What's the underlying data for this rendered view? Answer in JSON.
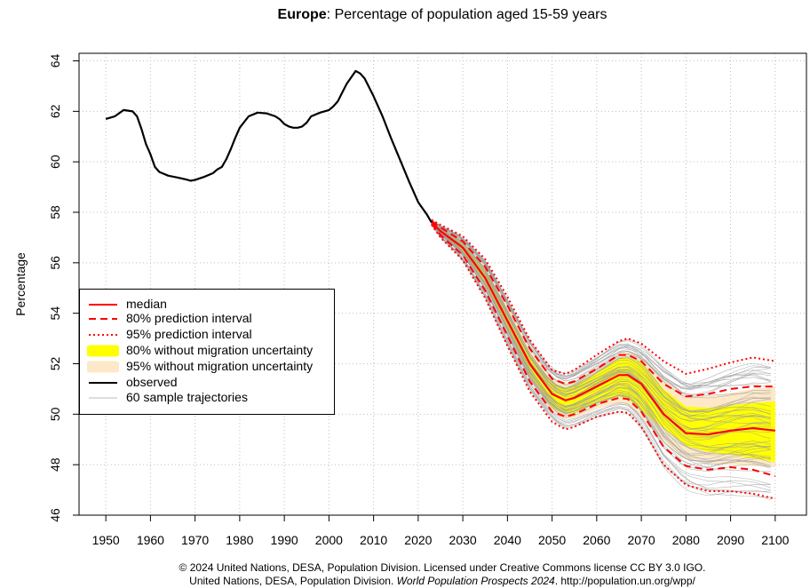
{
  "title": {
    "region": "Europe",
    "rest": ": Percentage of population aged 15-59 years"
  },
  "footer": {
    "line1": "© 2024 United Nations, DESA, Population Division. Licensed under Creative Commons license CC BY 3.0 IGO.",
    "line2_prefix": "United Nations, DESA, Population Division. ",
    "line2_italic": "World Population Prospects 2024",
    "line2_suffix": ". http://population.un.org/wpp/"
  },
  "legend": [
    {
      "key": "median",
      "label": "median"
    },
    {
      "key": "pi80",
      "label": "80% prediction interval"
    },
    {
      "key": "pi95",
      "label": "95% prediction interval"
    },
    {
      "key": "nomig80",
      "label": "80% without migration uncertainty"
    },
    {
      "key": "nomig95",
      "label": "95% without migration uncertainty"
    },
    {
      "key": "observed",
      "label": "observed"
    },
    {
      "key": "traj",
      "label": "60 sample trajectories"
    }
  ],
  "colors": {
    "median": "#ff0000",
    "band80": "#ffff00",
    "band95": "#fde8c8",
    "trajectory": "#9e9e9e",
    "observed": "#000000",
    "grid": "#bfbfbf"
  },
  "chart_data": {
    "type": "line",
    "title": "Europe: Percentage of population aged 15-59 years",
    "xlabel": "",
    "ylabel": "Percentage",
    "xlim": [
      1944,
      2107
    ],
    "ylim": [
      46,
      64.3
    ],
    "xticks": [
      1950,
      1960,
      1970,
      1980,
      1990,
      2000,
      2010,
      2020,
      2030,
      2040,
      2050,
      2060,
      2070,
      2080,
      2090,
      2100
    ],
    "yticks": [
      46,
      48,
      50,
      52,
      54,
      56,
      58,
      60,
      62,
      64
    ],
    "grid": true,
    "legend_position": "middle-left",
    "observed": {
      "x": [
        1950,
        1952,
        1954,
        1956,
        1957,
        1958,
        1959,
        1960,
        1961,
        1962,
        1964,
        1966,
        1968,
        1969,
        1970,
        1972,
        1974,
        1975,
        1976,
        1977,
        1978,
        1979,
        1980,
        1982,
        1984,
        1986,
        1988,
        1989,
        1990,
        1991,
        1992,
        1993,
        1994,
        1995,
        1996,
        1998,
        2000,
        2001,
        2002,
        2003,
        2004,
        2005,
        2006,
        2007,
        2008,
        2009,
        2010,
        2012,
        2014,
        2016,
        2018,
        2020,
        2022,
        2023
      ],
      "y": [
        61.7,
        61.8,
        62.05,
        62.0,
        61.8,
        61.3,
        60.7,
        60.3,
        59.8,
        59.6,
        59.45,
        59.38,
        59.3,
        59.25,
        59.28,
        59.4,
        59.55,
        59.7,
        59.8,
        60.1,
        60.5,
        60.95,
        61.35,
        61.8,
        61.95,
        61.92,
        61.8,
        61.68,
        61.5,
        61.4,
        61.35,
        61.35,
        61.4,
        61.55,
        61.8,
        61.95,
        62.05,
        62.2,
        62.4,
        62.75,
        63.1,
        63.35,
        63.6,
        63.5,
        63.3,
        62.95,
        62.6,
        61.8,
        60.9,
        60.05,
        59.2,
        58.4,
        57.9,
        57.6
      ]
    },
    "projection_x": [
      2023,
      2025,
      2030,
      2035,
      2040,
      2045,
      2050,
      2053,
      2055,
      2060,
      2065,
      2067,
      2070,
      2075,
      2080,
      2085,
      2090,
      2095,
      2100
    ],
    "median": [
      57.6,
      57.25,
      56.6,
      55.4,
      53.7,
      52.0,
      50.8,
      50.55,
      50.65,
      51.1,
      51.55,
      51.55,
      51.2,
      50.0,
      49.25,
      49.2,
      49.35,
      49.45,
      49.35
    ],
    "pi80_low": [
      57.55,
      57.1,
      56.3,
      54.9,
      53.1,
      51.3,
      50.1,
      49.9,
      50.0,
      50.4,
      50.65,
      50.6,
      50.1,
      48.7,
      47.95,
      47.8,
      47.9,
      47.8,
      47.55
    ],
    "pi80_high": [
      57.65,
      57.4,
      56.85,
      55.85,
      54.3,
      52.6,
      51.4,
      51.2,
      51.3,
      51.8,
      52.35,
      52.35,
      52.1,
      51.2,
      50.7,
      50.8,
      51.0,
      51.1,
      51.1
    ],
    "pi95_low": [
      57.5,
      57.0,
      56.1,
      54.6,
      52.7,
      50.9,
      49.7,
      49.4,
      49.5,
      49.9,
      50.1,
      50.05,
      49.5,
      48.0,
      47.2,
      46.95,
      46.95,
      46.85,
      46.65
    ],
    "pi95_high": [
      57.7,
      57.5,
      57.05,
      56.15,
      54.65,
      52.95,
      51.75,
      51.6,
      51.75,
      52.35,
      52.9,
      53.0,
      52.8,
      52.1,
      51.6,
      51.8,
      52.05,
      52.25,
      52.1
    ],
    "nomig80_low": [
      57.58,
      57.15,
      56.4,
      55.1,
      53.35,
      51.55,
      50.25,
      50.0,
      50.05,
      50.45,
      50.7,
      50.6,
      50.15,
      49.45,
      48.75,
      48.5,
      48.4,
      48.25,
      48.1
    ],
    "nomig80_high": [
      57.62,
      57.35,
      56.8,
      55.7,
      54.1,
      52.4,
      51.25,
      51.05,
      51.15,
      51.65,
      52.2,
      52.25,
      52.05,
      51.0,
      50.3,
      50.25,
      50.35,
      50.45,
      50.5
    ],
    "nomig95_low": [
      57.56,
      57.1,
      56.3,
      54.95,
      53.2,
      51.35,
      50.05,
      49.8,
      49.85,
      50.2,
      50.45,
      50.35,
      49.85,
      48.9,
      48.2,
      48.05,
      48.0,
      47.95,
      47.9
    ],
    "nomig95_high": [
      57.64,
      57.4,
      56.9,
      55.85,
      54.3,
      52.6,
      51.45,
      51.25,
      51.35,
      51.85,
      52.4,
      52.5,
      52.3,
      51.4,
      50.75,
      50.7,
      50.85,
      51.0,
      51.1
    ],
    "trajectories_count": 60
  }
}
